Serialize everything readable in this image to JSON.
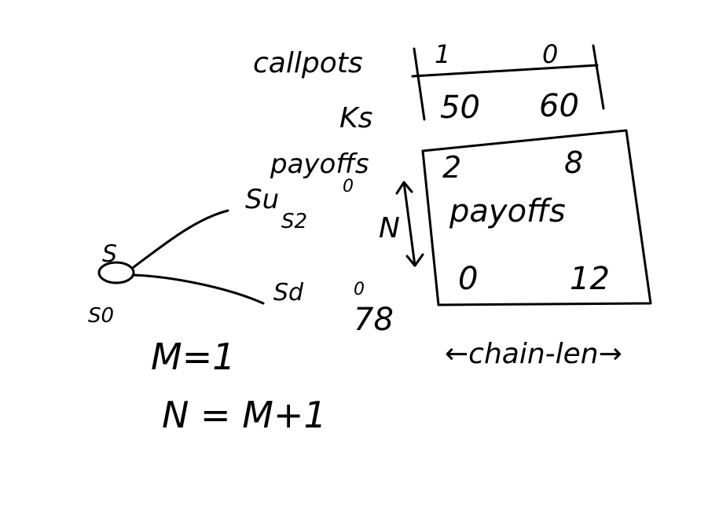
{
  "board": {
    "background": "#ffffff",
    "ink": "#000000",
    "header_table": {
      "row_labels": [
        "callpots",
        "Ks"
      ],
      "rows": [
        [
          "1",
          "0"
        ],
        [
          "50",
          "60"
        ]
      ]
    },
    "payoff_box": {
      "outer_label": "payoffs",
      "inner_label": "payoffs",
      "top_values": [
        "2",
        "8"
      ],
      "bottom_values": [
        "0",
        "12"
      ],
      "side_label": "N",
      "width_label": "←chain-len→"
    },
    "tree": {
      "root_symbol": "S",
      "root_label": "S0",
      "up_node": "Su",
      "up_index": "S2",
      "up_value": "0",
      "down_node": "Sd",
      "down_value": "0",
      "down_extra": "78"
    },
    "equations": [
      "M=1",
      "N = M+1"
    ]
  }
}
